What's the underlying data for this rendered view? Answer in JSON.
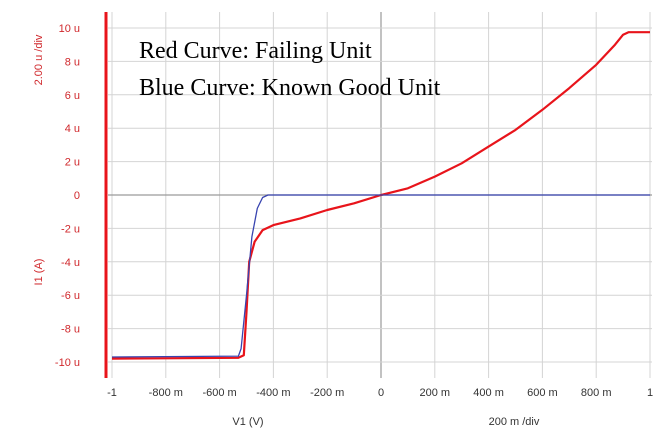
{
  "chart_data": {
    "type": "line",
    "xlabel": "V1 (V)",
    "x_div_label": "200 m /div",
    "ylabel": "I1 (A)",
    "y_div_label": "2.00 u /div",
    "xlim": [
      -1,
      1
    ],
    "ylim": [
      -10.6,
      10.6
    ],
    "grid": true,
    "x_ticks": [
      {
        "value": -1,
        "label": "-1"
      },
      {
        "value": -0.8,
        "label": "-800 m"
      },
      {
        "value": -0.6,
        "label": "-600 m"
      },
      {
        "value": -0.4,
        "label": "-400 m"
      },
      {
        "value": -0.2,
        "label": "-200 m"
      },
      {
        "value": 0,
        "label": "0"
      },
      {
        "value": 0.2,
        "label": "200 m"
      },
      {
        "value": 0.4,
        "label": "400 m"
      },
      {
        "value": 0.6,
        "label": "600 m"
      },
      {
        "value": 0.8,
        "label": "800 m"
      },
      {
        "value": 1,
        "label": "1"
      }
    ],
    "y_ticks": [
      {
        "value": 10,
        "label": "10 u"
      },
      {
        "value": 8,
        "label": "8 u"
      },
      {
        "value": 6,
        "label": "6 u"
      },
      {
        "value": 4,
        "label": "4 u"
      },
      {
        "value": 2,
        "label": "2 u"
      },
      {
        "value": 0,
        "label": "0"
      },
      {
        "value": -2,
        "label": "-2 u"
      },
      {
        "value": -4,
        "label": "-4 u"
      },
      {
        "value": -6,
        "label": "-6 u"
      },
      {
        "value": -8,
        "label": "-8 u"
      },
      {
        "value": -10,
        "label": "-10 u"
      }
    ],
    "legend": [
      {
        "text": "Red Curve: Failing Unit"
      },
      {
        "text": "Blue Curve: Known Good Unit"
      }
    ],
    "series": [
      {
        "color": "#e8141b",
        "points": [
          [
            -1,
            -9.8
          ],
          [
            -0.53,
            -9.75
          ],
          [
            -0.51,
            -9.6
          ],
          [
            -0.5,
            -7
          ],
          [
            -0.49,
            -4
          ],
          [
            -0.47,
            -2.8
          ],
          [
            -0.44,
            -2.1
          ],
          [
            -0.4,
            -1.8
          ],
          [
            -0.3,
            -1.4
          ],
          [
            -0.2,
            -0.9
          ],
          [
            -0.1,
            -0.5
          ],
          [
            0,
            0
          ],
          [
            0.1,
            0.4
          ],
          [
            0.2,
            1.1
          ],
          [
            0.3,
            1.9
          ],
          [
            0.4,
            2.9
          ],
          [
            0.5,
            3.9
          ],
          [
            0.6,
            5.1
          ],
          [
            0.7,
            6.4
          ],
          [
            0.8,
            7.8
          ],
          [
            0.87,
            9
          ],
          [
            0.9,
            9.6
          ],
          [
            0.92,
            9.75
          ],
          [
            1,
            9.75
          ]
        ]
      },
      {
        "color": "#3844b0",
        "points": [
          [
            -1,
            -9.7
          ],
          [
            -0.53,
            -9.65
          ],
          [
            -0.52,
            -9.2
          ],
          [
            -0.5,
            -6
          ],
          [
            -0.48,
            -2.5
          ],
          [
            -0.46,
            -0.8
          ],
          [
            -0.44,
            -0.15
          ],
          [
            -0.42,
            0
          ],
          [
            1,
            0
          ]
        ]
      }
    ]
  }
}
